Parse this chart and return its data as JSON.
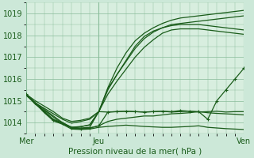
{
  "background_color": "#cce8d8",
  "plot_bg_color": "#d8eedf",
  "grid_color": "#88bb99",
  "line_color": "#1a5c1a",
  "title": "Pression niveau de la mer( hPa )",
  "ylim": [
    1013.5,
    1019.5
  ],
  "yticks": [
    1014,
    1015,
    1016,
    1017,
    1018,
    1019
  ],
  "xlim": [
    0,
    48
  ],
  "xtick_positions": [
    0,
    16,
    48
  ],
  "xtick_labels": [
    "Mer",
    "Jeu",
    "Ven"
  ],
  "series": [
    {
      "x": [
        0,
        2,
        4,
        6,
        8,
        10,
        12,
        14,
        16,
        18,
        20,
        22,
        24,
        26,
        28,
        30,
        32,
        34,
        36,
        38,
        40,
        42,
        44,
        46,
        48
      ],
      "y": [
        1015.3,
        1015.0,
        1014.75,
        1014.5,
        1014.2,
        1014.05,
        1014.1,
        1014.2,
        1014.5,
        1015.6,
        1016.5,
        1017.2,
        1017.75,
        1018.1,
        1018.35,
        1018.55,
        1018.7,
        1018.8,
        1018.85,
        1018.9,
        1018.95,
        1019.0,
        1019.05,
        1019.1,
        1019.15
      ],
      "marker": false
    },
    {
      "x": [
        0,
        2,
        4,
        6,
        8,
        10,
        12,
        14,
        16,
        18,
        20,
        22,
        24,
        26,
        28,
        30,
        32,
        34,
        36,
        38,
        40,
        42,
        44,
        46,
        48
      ],
      "y": [
        1015.3,
        1014.9,
        1014.65,
        1014.4,
        1014.15,
        1013.97,
        1014.05,
        1014.15,
        1014.5,
        1015.55,
        1016.2,
        1016.8,
        1017.4,
        1017.85,
        1018.15,
        1018.35,
        1018.5,
        1018.55,
        1018.6,
        1018.65,
        1018.7,
        1018.75,
        1018.8,
        1018.85,
        1018.9
      ],
      "marker": false
    },
    {
      "x": [
        0,
        2,
        4,
        6,
        8,
        10,
        12,
        14,
        16,
        18,
        20,
        22,
        24,
        26,
        28,
        30,
        32,
        34,
        36,
        38,
        40,
        42,
        44,
        46,
        48
      ],
      "y": [
        1015.3,
        1014.85,
        1014.55,
        1014.25,
        1013.95,
        1013.78,
        1013.8,
        1013.9,
        1014.5,
        1015.5,
        1016.2,
        1016.85,
        1017.5,
        1017.95,
        1018.2,
        1018.35,
        1018.45,
        1018.5,
        1018.5,
        1018.5,
        1018.45,
        1018.4,
        1018.35,
        1018.3,
        1018.25
      ],
      "marker": false
    },
    {
      "x": [
        0,
        2,
        4,
        6,
        8,
        10,
        12,
        14,
        16,
        18,
        20,
        22,
        24,
        26,
        28,
        30,
        32,
        34,
        36,
        38,
        40,
        42,
        44,
        46,
        48
      ],
      "y": [
        1015.3,
        1014.9,
        1014.6,
        1014.3,
        1014.0,
        1013.78,
        1013.82,
        1013.88,
        1014.5,
        1015.3,
        1015.9,
        1016.45,
        1017.0,
        1017.45,
        1017.8,
        1018.1,
        1018.25,
        1018.3,
        1018.3,
        1018.3,
        1018.25,
        1018.2,
        1018.15,
        1018.1,
        1018.05
      ],
      "marker": false
    },
    {
      "x": [
        0,
        2,
        4,
        6,
        8,
        10,
        12,
        14,
        16,
        18,
        20,
        22,
        24,
        26,
        28,
        30,
        32,
        34,
        36,
        38,
        40,
        42,
        44,
        46,
        48
      ],
      "y": [
        1015.3,
        1014.85,
        1014.5,
        1014.15,
        1013.98,
        1013.78,
        1013.75,
        1013.78,
        1014.5,
        1014.48,
        1014.5,
        1014.52,
        1014.5,
        1014.48,
        1014.5,
        1014.52,
        1014.48,
        1014.5,
        1014.52,
        1014.48,
        1014.5,
        1014.52,
        1014.48,
        1014.5,
        1014.5
      ],
      "marker": false
    },
    {
      "x": [
        0,
        2,
        4,
        6,
        8,
        10,
        12,
        14,
        16,
        18,
        20,
        22,
        24,
        26,
        28,
        30,
        32,
        34,
        36,
        38,
        40,
        42,
        44,
        46,
        48
      ],
      "y": [
        1015.25,
        1014.9,
        1014.5,
        1014.1,
        1013.97,
        1013.75,
        1013.72,
        1013.75,
        1013.85,
        1014.05,
        1014.15,
        1014.2,
        1014.25,
        1014.3,
        1014.3,
        1014.35,
        1014.4,
        1014.42,
        1014.45,
        1014.5,
        1014.45,
        1014.42,
        1014.4,
        1014.38,
        1014.35
      ],
      "marker": false
    },
    {
      "x": [
        0,
        2,
        4,
        6,
        8,
        10,
        12,
        14,
        16,
        18,
        20,
        22,
        24,
        26,
        28,
        30,
        32,
        34,
        36,
        38,
        40,
        42,
        44,
        46,
        48
      ],
      "y": [
        1015.25,
        1014.88,
        1014.45,
        1014.08,
        1013.92,
        1013.7,
        1013.68,
        1013.7,
        1013.78,
        1013.82,
        1013.85,
        1013.88,
        1013.85,
        1013.82,
        1013.8,
        1013.78,
        1013.78,
        1013.8,
        1013.82,
        1013.85,
        1013.78,
        1013.75,
        1013.72,
        1013.7,
        1013.68
      ],
      "marker": false
    }
  ],
  "marker_series": {
    "x": [
      0,
      2,
      4,
      6,
      8,
      10,
      12,
      14,
      16,
      18,
      20,
      22,
      24,
      26,
      28,
      30,
      32,
      34,
      36,
      38,
      40,
      42,
      44,
      46,
      48
    ],
    "y": [
      1015.3,
      1014.9,
      1014.5,
      1014.1,
      1013.97,
      1013.75,
      1013.7,
      1013.75,
      1013.85,
      1014.48,
      1014.5,
      1014.52,
      1014.5,
      1014.48,
      1014.5,
      1014.52,
      1014.5,
      1014.55,
      1014.52,
      1014.5,
      1014.15,
      1015.0,
      1015.5,
      1016.0,
      1016.5
    ]
  },
  "figsize": [
    3.2,
    2.0
  ],
  "dpi": 100
}
